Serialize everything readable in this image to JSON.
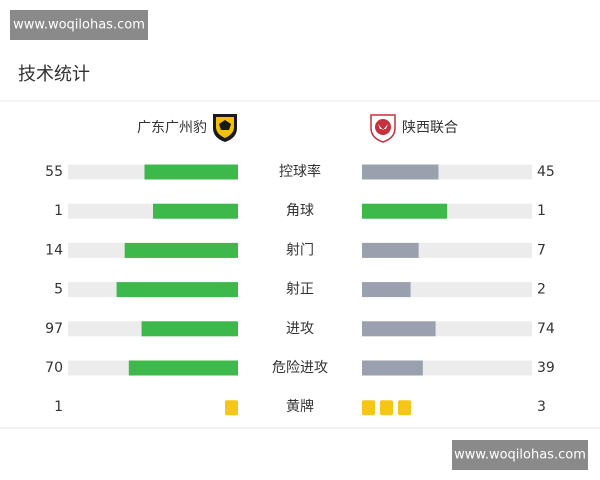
{
  "watermark_top": "www.woqilohas.com",
  "title": "技术统计",
  "teams": {
    "home": "广东广州豹",
    "away": "陕西联合"
  },
  "stats": [
    {
      "label": "控球率",
      "home": 55,
      "away": 45
    },
    {
      "label": "角球",
      "home": 1,
      "away": 1
    },
    {
      "label": "射门",
      "home": 14,
      "away": 7
    },
    {
      "label": "射正",
      "home": 5,
      "away": 2
    },
    {
      "label": "进攻",
      "home": 97,
      "away": 74
    },
    {
      "label": "危险进攻",
      "home": 70,
      "away": 39
    }
  ],
  "yellow_cards": {
    "label": "黄牌",
    "home": 1,
    "away": 3
  },
  "watermark_bottom": "www.woqilohas.com"
}
